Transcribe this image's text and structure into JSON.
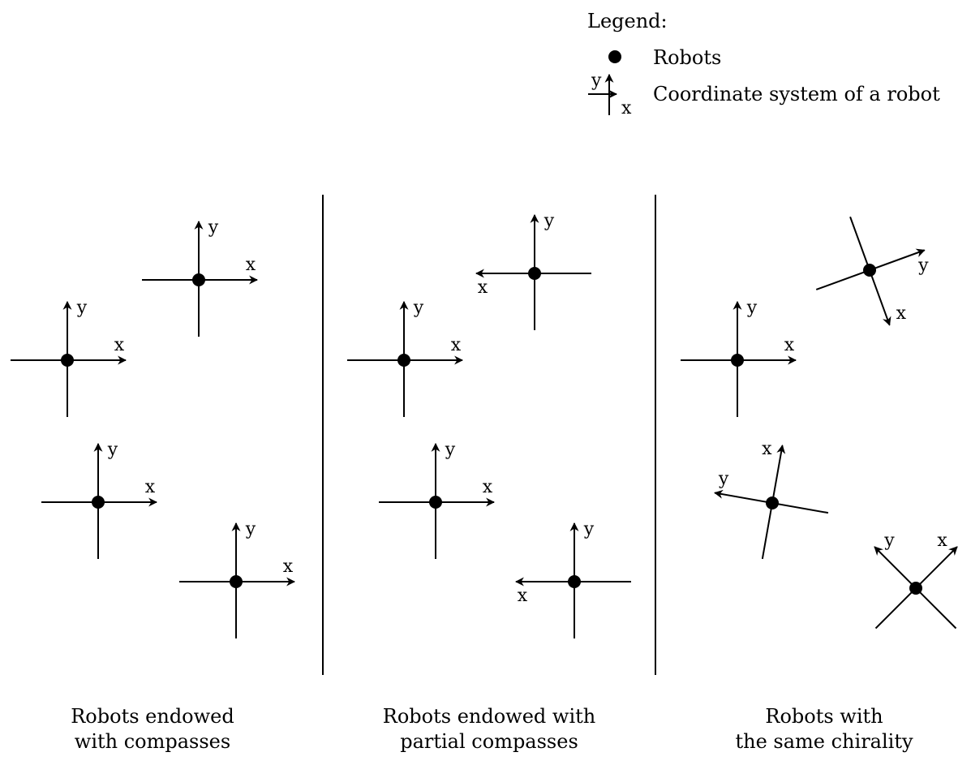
{
  "legend": {
    "title": "Legend:",
    "robot_label": "Robots",
    "coord_label": "Coordinate system of a robot",
    "axis_x": "x",
    "axis_y": "y"
  },
  "panels": [
    {
      "id": "compasses",
      "caption": [
        "Robots endowed",
        "with compasses"
      ],
      "robots": [
        {
          "x_dir_deg": 0,
          "y_dir_deg": 90
        },
        {
          "x_dir_deg": 0,
          "y_dir_deg": 90
        },
        {
          "x_dir_deg": 0,
          "y_dir_deg": 90
        },
        {
          "x_dir_deg": 0,
          "y_dir_deg": 90
        }
      ]
    },
    {
      "id": "partial-compasses",
      "caption": [
        "Robots endowed with",
        "partial compasses"
      ],
      "robots": [
        {
          "x_dir_deg": 180,
          "y_dir_deg": 90
        },
        {
          "x_dir_deg": 0,
          "y_dir_deg": 90
        },
        {
          "x_dir_deg": 0,
          "y_dir_deg": 90
        },
        {
          "x_dir_deg": 180,
          "y_dir_deg": 90
        }
      ]
    },
    {
      "id": "same-chirality",
      "caption": [
        "Robots with",
        "the same chirality"
      ],
      "robots": [
        {
          "x_dir_deg": -70,
          "y_dir_deg": 20
        },
        {
          "x_dir_deg": 0,
          "y_dir_deg": 90
        },
        {
          "x_dir_deg": 80,
          "y_dir_deg": 170
        },
        {
          "x_dir_deg": 45,
          "y_dir_deg": 135
        }
      ]
    }
  ]
}
